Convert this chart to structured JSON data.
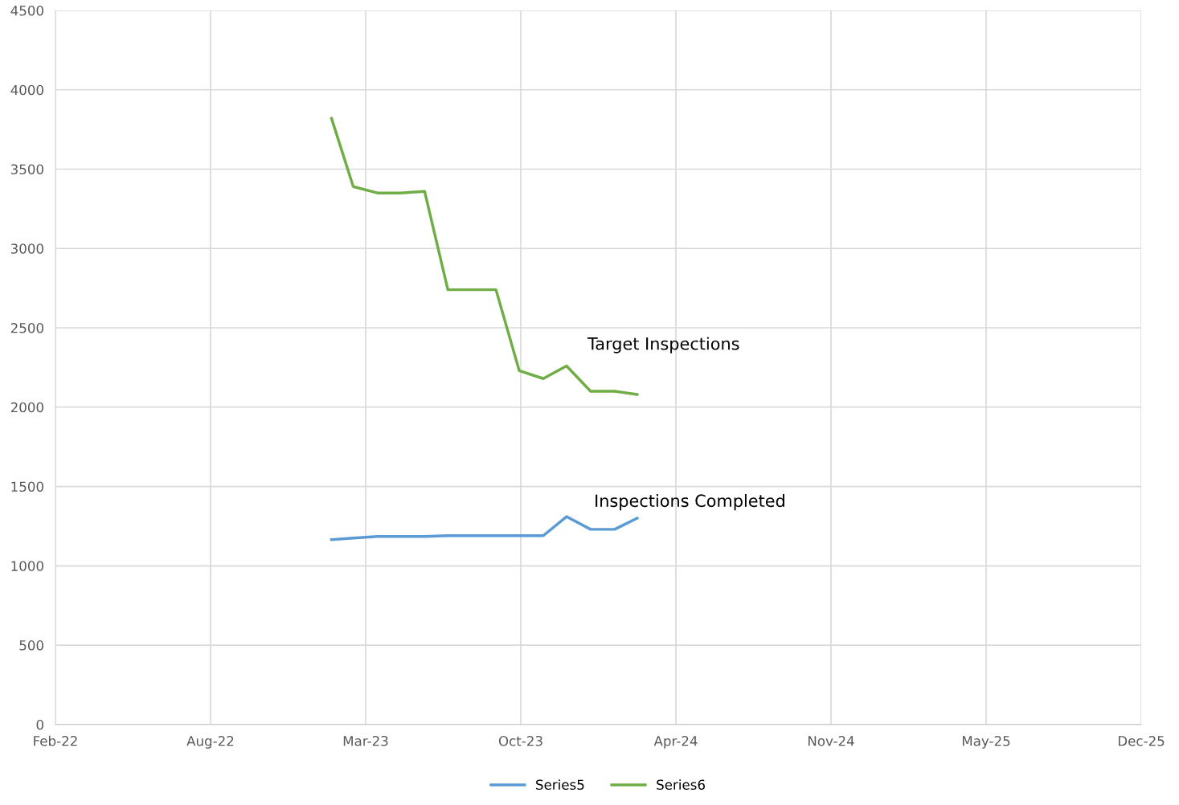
{
  "chart_data": {
    "type": "line",
    "x": [
      "2023-02-01",
      "2023-03-01",
      "2023-04-01",
      "2023-05-01",
      "2023-06-01",
      "2023-07-01",
      "2023-08-01",
      "2023-09-01",
      "2023-10-01",
      "2023-11-01",
      "2023-12-01",
      "2024-01-01",
      "2024-02-01",
      "2024-03-01"
    ],
    "series": [
      {
        "name": "Series5",
        "color": "#5b9bd5",
        "values": [
          1165,
          1175,
          1185,
          1185,
          1185,
          1190,
          1190,
          1190,
          1190,
          1190,
          1310,
          1230,
          1230,
          1300
        ]
      },
      {
        "name": "Series6",
        "color": "#70ad47",
        "values": [
          3820,
          3390,
          3350,
          3350,
          3360,
          2740,
          2740,
          2740,
          2230,
          2180,
          2260,
          2100,
          2100,
          2080
        ]
      }
    ],
    "annotations": [
      "Target Inspections",
      "Inspections Completed"
    ],
    "xlim": [
      "2022-02-10",
      "2025-12-11"
    ],
    "xticks": [
      {
        "value": "2022-02-10",
        "label": "Feb-22"
      },
      {
        "value": "2022-08-29",
        "label": "Aug-22"
      },
      {
        "value": "2023-03-17",
        "label": "Mar-23"
      },
      {
        "value": "2023-10-03",
        "label": "Oct-23"
      },
      {
        "value": "2024-04-20",
        "label": "Apr-24"
      },
      {
        "value": "2024-11-06",
        "label": "Nov-24"
      },
      {
        "value": "2025-05-25",
        "label": "May-25"
      },
      {
        "value": "2025-12-11",
        "label": "Dec-25"
      }
    ],
    "ylim": [
      0,
      4500
    ],
    "yticks": [
      0,
      500,
      1000,
      1500,
      2000,
      2500,
      3000,
      3500,
      4000,
      4500
    ],
    "grid": true,
    "legend": "bottom",
    "marker": "none",
    "line_style": "solid"
  }
}
